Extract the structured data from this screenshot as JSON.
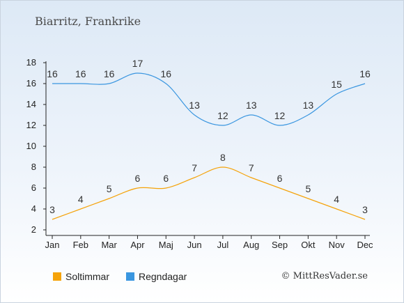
{
  "title": "Biarritz, Frankrike",
  "credit": "© MittResVader.se",
  "colors": {
    "Soltimmar": "#f5a30a",
    "Regndagar": "#3a96e0"
  },
  "chart_data": {
    "type": "line",
    "title": "Biarritz, Frankrike",
    "categories": [
      "Jan",
      "Feb",
      "Mar",
      "Apr",
      "Maj",
      "Jun",
      "Jul",
      "Aug",
      "Sep",
      "Okt",
      "Nov",
      "Dec"
    ],
    "ylim": [
      2,
      18
    ],
    "yticks": [
      2,
      4,
      6,
      8,
      10,
      12,
      14,
      16,
      18
    ],
    "grid": false,
    "legend": "bottom-left",
    "series": [
      {
        "name": "Soltimmar",
        "values": [
          3,
          4,
          5,
          6,
          6,
          7,
          8,
          7,
          6,
          5,
          4,
          3
        ]
      },
      {
        "name": "Regndagar",
        "values": [
          16,
          16,
          16,
          17,
          16,
          13,
          12,
          13,
          12,
          13,
          15,
          16
        ]
      }
    ]
  }
}
